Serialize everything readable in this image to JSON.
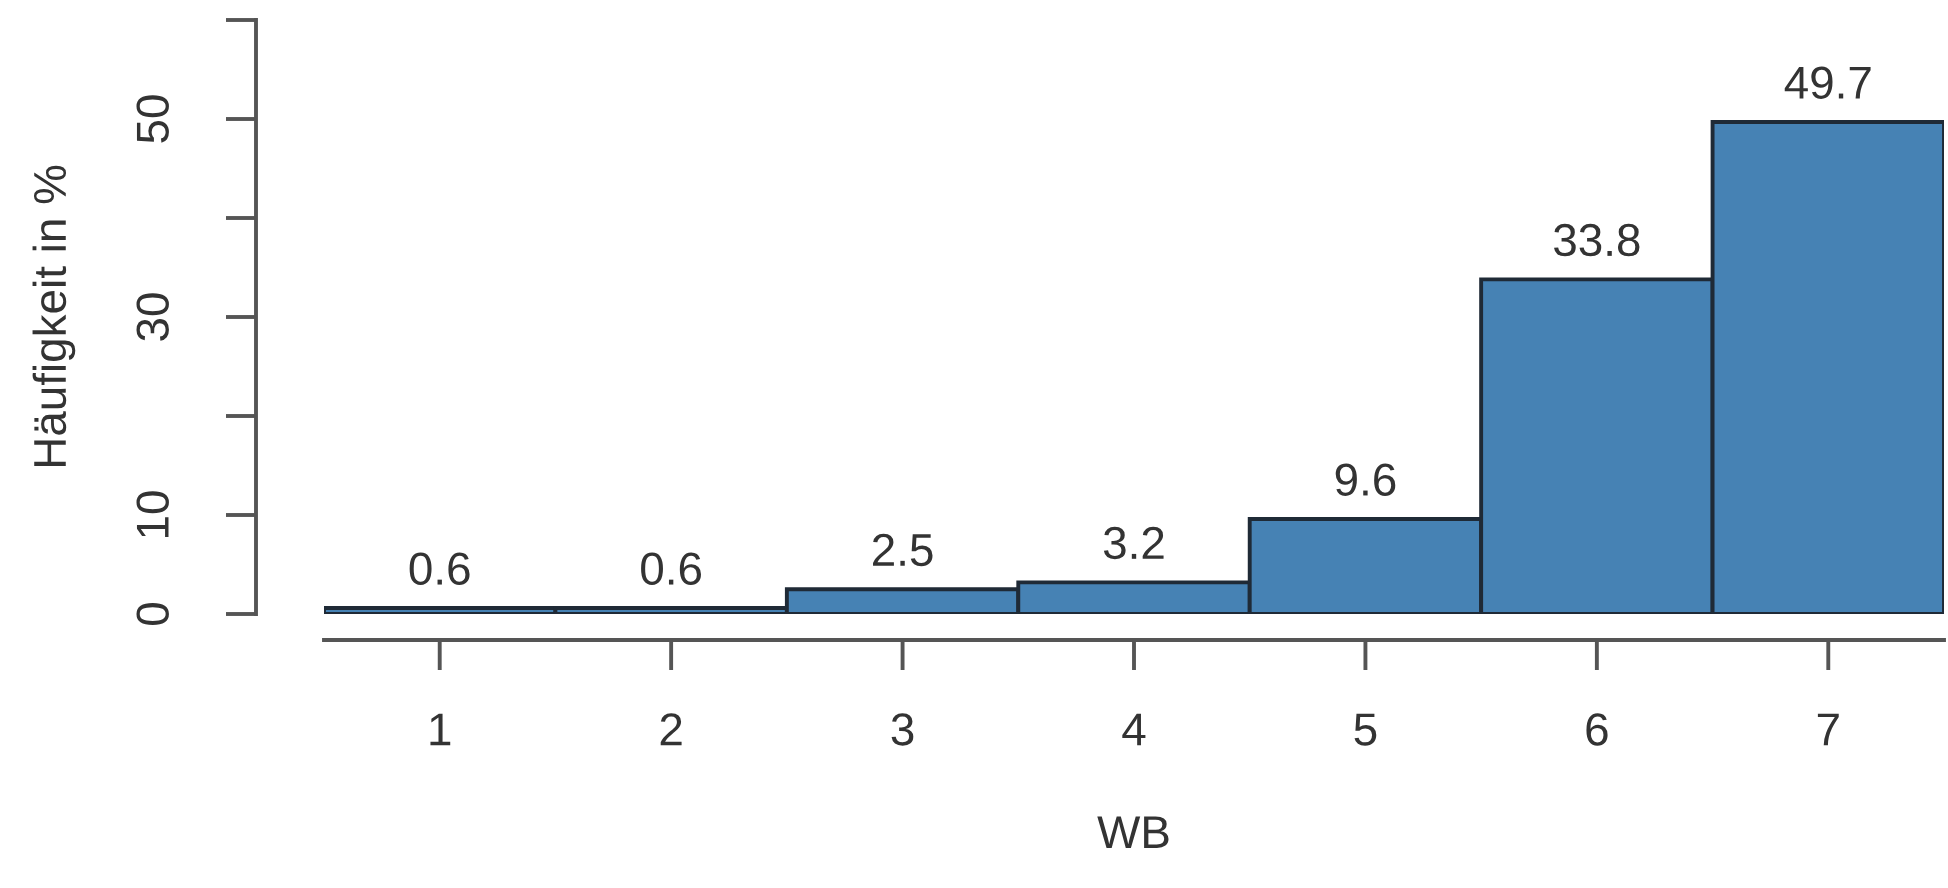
{
  "chart_data": {
    "type": "histogram",
    "xlabel": "WB",
    "ylabel": "Häufigkeit in %",
    "bins": [
      0.5,
      1.5,
      2.5,
      3.5,
      4.5,
      5.5,
      6.5,
      7.5
    ],
    "values": [
      0.6,
      0.6,
      2.5,
      3.2,
      9.6,
      33.8,
      49.7
    ],
    "color": "#4682b4",
    "data_labels": true,
    "xlim": [
      0.5,
      7.5
    ],
    "xticks": [
      1,
      2,
      3,
      4,
      5,
      6,
      7
    ],
    "ylim": [
      0,
      60
    ],
    "yticks": [
      0,
      10,
      {
        "value": 20,
        "label": null
      },
      30,
      {
        "value": 40,
        "label": null
      },
      50,
      {
        "value": 60,
        "label": null
      }
    ],
    "grid": false
  }
}
